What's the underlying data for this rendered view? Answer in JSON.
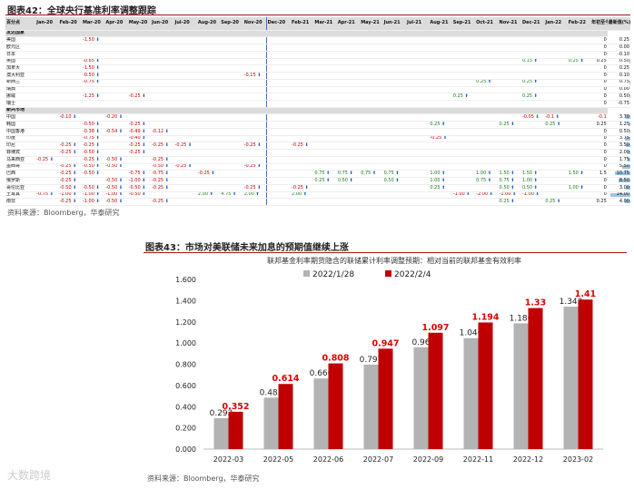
{
  "figure42": {
    "label": "图表42：",
    "title": "全球央行基准利率调整跟踪",
    "source": "资料来源：Bloomberg，华泰研究",
    "header": [
      "百分点",
      "Jan-20",
      "Feb-20",
      "Mar-20",
      "Apr-20",
      "May-20",
      "Jun-20",
      "Jul-20",
      "Aug-20",
      "Sep-20",
      "Nov-20",
      "Dec-20",
      "Feb-21",
      "Mar-21",
      "Apr-21",
      "May-21",
      "Jun-21",
      "Jul-21",
      "Aug-21",
      "Sep-21",
      "Oct-21",
      "Nov-21",
      "Dec-21",
      "Jan-22",
      "Feb-22",
      "年初至今累计",
      "最新值(%)"
    ],
    "sections": [
      {
        "name": "发达国家",
        "rows": [
          {
            "c": "美国",
            "v": {
              "3": "-1.50"
            },
            "ytd": "0",
            "last": "0.25"
          },
          {
            "c": "欧元区",
            "v": {},
            "ytd": "0",
            "last": "0.00"
          },
          {
            "c": "日本",
            "v": {},
            "ytd": "0",
            "last": "-0.10"
          },
          {
            "c": "英国",
            "v": {
              "3": "-0.65",
              "22": "0.15",
              "24": "0.25"
            },
            "ytd": "0.25",
            "last": "0.50"
          },
          {
            "c": "加拿大",
            "v": {
              "3": "-1.50"
            },
            "ytd": "0",
            "last": "0.25"
          },
          {
            "c": "澳大利亚",
            "v": {
              "3": "-0.50",
              "10": "-0.15"
            },
            "ytd": "0",
            "last": "0.10"
          },
          {
            "c": "新西兰",
            "v": {
              "3": "-0.75",
              "20": "0.25",
              "22": "0.25"
            },
            "ytd": "0",
            "last": "0.75"
          },
          {
            "c": "瑞典",
            "v": {},
            "ytd": "0",
            "last": "0.00"
          },
          {
            "c": "挪威",
            "v": {
              "3": "-1.25",
              "5": "-0.25",
              "19": "0.25",
              "22": "0.25"
            },
            "ytd": "0",
            "last": "0.50"
          },
          {
            "c": "瑞士",
            "v": {},
            "ytd": "0",
            "last": "-0.75"
          }
        ]
      },
      {
        "name": "新兴市场",
        "rows": [
          {
            "c": "中国",
            "v": {
              "2": "-0.10",
              "4": "-0.20",
              "22": "-0.05",
              "23": "-0.1"
            },
            "ytd": "-0.1",
            "last": "3.70"
          },
          {
            "c": "韩国",
            "v": {
              "3": "-0.50",
              "5": "-0.25",
              "18": "0.25",
              "21": "0.25",
              "23": "0.25"
            },
            "ytd": "0.25",
            "last": "1.25"
          },
          {
            "c": "中国香港",
            "v": {
              "3": "-0.38",
              "4": "-0.54",
              "5": "-0.49",
              "6": "-0.12"
            },
            "ytd": "0",
            "last": "0.50"
          },
          {
            "c": "印度",
            "v": {
              "3": "-0.75",
              "5": "-0.40",
              "18": "-0.25"
            },
            "ytd": "0",
            "last": "3.75"
          },
          {
            "c": "印尼",
            "v": {
              "2": "-0.25",
              "3": "-0.25",
              "5": "-0.25",
              "6": "-0.25",
              "7": "-0.25",
              "10": "-0.25",
              "12": "-0.25"
            },
            "ytd": "0",
            "last": "3.50"
          },
          {
            "c": "菲律宾",
            "v": {
              "2": "-0.25",
              "3": "-0.50",
              "5": "-0.25"
            },
            "ytd": "0",
            "last": "2.00"
          },
          {
            "c": "马来西亚",
            "v": {
              "1": "-0.25",
              "3": "-0.25",
              "4": "-0.50",
              "6": "-0.25"
            },
            "ytd": "0",
            "last": "1.75"
          },
          {
            "c": "墨西哥",
            "v": {
              "2": "-0.25",
              "3": "-0.50",
              "4": "-0.50",
              "6": "-0.50",
              "7": "-0.25",
              "10": "-0.25"
            },
            "ytd": "0",
            "last": "5.50"
          },
          {
            "c": "巴西",
            "v": {
              "2": "-0.25",
              "3": "-0.50",
              "5": "-0.75",
              "6": "-0.75",
              "8": "-0.25",
              "13": "0.75",
              "14": "0.75",
              "15": "0.75",
              "16": "0.75",
              "18": "1.00",
              "20": "1.00",
              "21": "1.50",
              "22": "1.50",
              "24": "1.50"
            },
            "ytd": "1.5",
            "last": "10.75"
          },
          {
            "c": "俄罗斯",
            "v": {
              "2": "-0.25",
              "4": "-0.50",
              "5": "-1.00",
              "6": "-0.25",
              "13": "0.25",
              "14": "0.50",
              "16": "0.50",
              "18": "1.00",
              "20": "0.75",
              "21": "0.75",
              "22": "1.00"
            },
            "ytd": "0",
            "last": "8.50"
          },
          {
            "c": "哥伦比亚",
            "v": {
              "2": "-0.50",
              "3": "-0.50",
              "4": "-0.50",
              "5": "-0.50",
              "6": "-0.25",
              "10": "-0.25",
              "12": "-0.25",
              "18": "0.25",
              "21": "0.50",
              "22": "0.50",
              "24": "1.00"
            },
            "ytd": "0",
            "last": "3.00"
          },
          {
            "c": "土耳其",
            "v": {
              "1": "-0.75",
              "2": "-1.00",
              "3": "-1.00",
              "4": "-1.00",
              "5": "-0.50",
              "8": "2.00",
              "9": "4.75",
              "10": "2.00",
              "12": "2.00",
              "19": "-1.00",
              "20": "-2.00",
              "21": "-1.00",
              "22": "-1.00"
            },
            "ytd": "0",
            "last": "14.00"
          },
          {
            "c": "南非",
            "v": {
              "2": "-0.25",
              "3": "-1.00",
              "4": "-0.50",
              "6": "-0.25",
              "21": "0.25",
              "23": "0.25"
            },
            "ytd": "0.25",
            "last": "4.00"
          }
        ]
      }
    ]
  },
  "figure43": {
    "label": "图表43：",
    "title": "市场对美联储未来加息的预期值继续上涨",
    "source": "资料来源：Bloomberg，华泰研究",
    "watermark": "大数跨境"
  },
  "chart_data": {
    "type": "bar",
    "title": "联邦基金利率期货隐含的联储累计利率调整预期：相对当前的联邦基金有效利率",
    "categories": [
      "2022-03",
      "2022-05",
      "2022-06",
      "2022-07",
      "2022-09",
      "2022-11",
      "2022-12",
      "2023-02"
    ],
    "series": [
      {
        "name": "2022/1/28",
        "color": "#b3b3b3",
        "values": [
          0.292,
          0.485,
          0.666,
          0.797,
          0.96,
          1.046,
          1.186,
          1.343
        ],
        "labels": [
          "0.292",
          "0.485",
          "0.666",
          "0.797",
          "0.96",
          "1.046",
          "1.186",
          "1.343"
        ]
      },
      {
        "name": "2022/2/4",
        "color": "#c00000",
        "values": [
          0.352,
          0.614,
          0.808,
          0.947,
          1.097,
          1.194,
          1.33,
          1.41
        ],
        "labels": [
          "0.352",
          "0.614",
          "0.808",
          "0.947",
          "1.097",
          "1.194",
          "1.33",
          "1.41"
        ]
      }
    ],
    "yticks": [
      "0.000",
      "0.200",
      "0.400",
      "0.600",
      "0.800",
      "1.000",
      "1.200",
      "1.400",
      "1.600"
    ],
    "ylim": [
      0,
      1.6
    ],
    "legend": "top"
  }
}
